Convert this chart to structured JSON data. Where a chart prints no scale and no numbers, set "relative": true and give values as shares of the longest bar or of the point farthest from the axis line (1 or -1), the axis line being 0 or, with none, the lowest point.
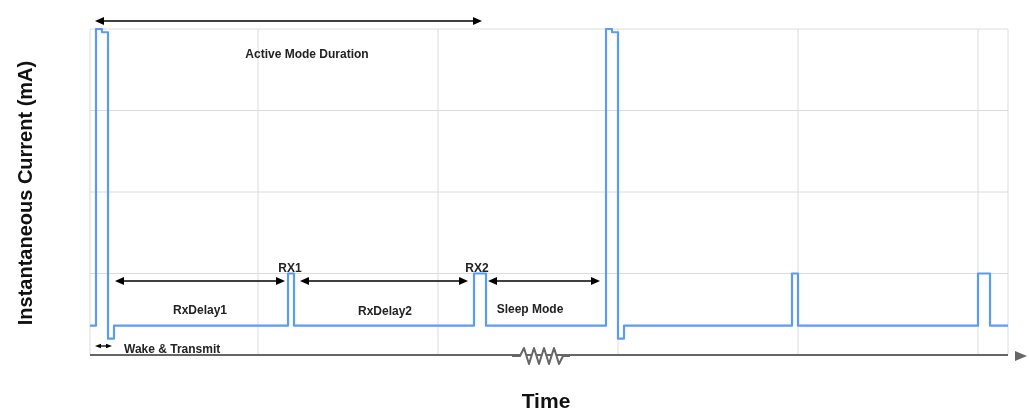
{
  "chart_data": {
    "type": "step",
    "relative": true,
    "xlabel": "Time",
    "ylabel": "Instantaneous Current (mA)",
    "grid": true,
    "marker": "none",
    "annotations": [
      "Active Mode Duration",
      "RX1",
      "RX2",
      "RxDelay1",
      "RxDelay2",
      "Sleep Mode",
      "Wake & Transmit"
    ],
    "categories": [
      null,
      null,
      null,
      null,
      null,
      null,
      null,
      null,
      null,
      null,
      null,
      null,
      null,
      null,
      null,
      null,
      null,
      null,
      null,
      null,
      null,
      null,
      null,
      null,
      null,
      null,
      null,
      null,
      null,
      null,
      null,
      null,
      null,
      null,
      null,
      null,
      null,
      null,
      null,
      null,
      null,
      null,
      null,
      null,
      null,
      null,
      null,
      null,
      null,
      null,
      null,
      null,
      null,
      null,
      null,
      null,
      null,
      null,
      null,
      null,
      null,
      null,
      null,
      null,
      null,
      null,
      null,
      null,
      null,
      null,
      null,
      null,
      null,
      null,
      null,
      null,
      null,
      null,
      null,
      null,
      null,
      null,
      null,
      null,
      null,
      null,
      null,
      null,
      null,
      null,
      null,
      null,
      null,
      null,
      null,
      null,
      null,
      null,
      null,
      null,
      null,
      null,
      null,
      null,
      null,
      null,
      null,
      null,
      null,
      null,
      null,
      null,
      null,
      null,
      null,
      null,
      null,
      null,
      null,
      null,
      null,
      null,
      null,
      null,
      null,
      null,
      null,
      null,
      null,
      null,
      null,
      null,
      null,
      null,
      null,
      null,
      null,
      null,
      null,
      null,
      null,
      null,
      null,
      null,
      null,
      null,
      null,
      null,
      null,
      null,
      null,
      null,
      null,
      null
    ],
    "series": [
      {
        "color": "#5b9cf0",
        "values": [
          0.09,
          1,
          0.99,
          0.05,
          0.09,
          0.09,
          0.09,
          0.09,
          0.09,
          0.09,
          0.09,
          0.09,
          0.09,
          0.09,
          0.09,
          0.09,
          0.09,
          0.09,
          0.09,
          0.09,
          0.09,
          0.09,
          0.09,
          0.09,
          0.09,
          0.09,
          0.09,
          0.09,
          0.09,
          0.09,
          0.09,
          0.09,
          0.09,
          0.25,
          0.09,
          0.09,
          0.09,
          0.09,
          0.09,
          0.09,
          0.09,
          0.09,
          0.09,
          0.09,
          0.09,
          0.09,
          0.09,
          0.09,
          0.09,
          0.09,
          0.09,
          0.09,
          0.09,
          0.09,
          0.09,
          0.09,
          0.09,
          0.09,
          0.09,
          0.09,
          0.09,
          0.09,
          0.09,
          0.09,
          0.25,
          0.25,
          0.09,
          0.09,
          0.09,
          0.09,
          0.09,
          0.09,
          0.09,
          0.09,
          0.09,
          0.09,
          0.09,
          0.09,
          0.09,
          0.09,
          0.09,
          0.09,
          0.09,
          0.09,
          0.09,
          0.09,
          1,
          0.99,
          0.05,
          0.09,
          0.09,
          0.09,
          0.09,
          0.09,
          0.09,
          0.09,
          0.09,
          0.09,
          0.09,
          0.09,
          0.09,
          0.09,
          0.09,
          0.09,
          0.09,
          0.09,
          0.09,
          0.09,
          0.09,
          0.09,
          0.09,
          0.09,
          0.09,
          0.09,
          0.09,
          0.09,
          0.09,
          0.25,
          0.09,
          0.09,
          0.09,
          0.09,
          0.09,
          0.09,
          0.09,
          0.09,
          0.09,
          0.09,
          0.09,
          0.09,
          0.09,
          0.09,
          0.09,
          0.09,
          0.09,
          0.09,
          0.09,
          0.09,
          0.09,
          0.09,
          0.09,
          0.09,
          0.09,
          0.09,
          0.09,
          0.09,
          0.09,
          0.09,
          0.25,
          0.25,
          0.09,
          0.09,
          0.09,
          0.09
        ]
      }
    ]
  }
}
